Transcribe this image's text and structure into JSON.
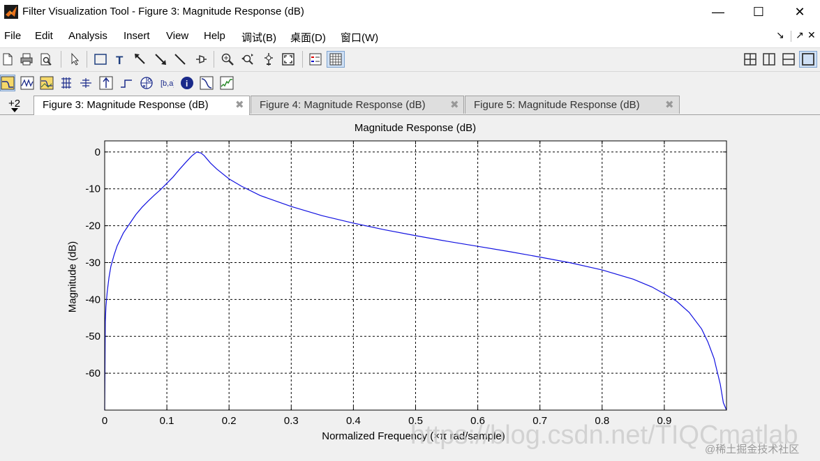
{
  "window": {
    "title": "Filter Visualization Tool - Figure 3: Magnitude Response (dB)",
    "minimize": "—",
    "maximize": "☐",
    "close": "✕"
  },
  "menu": {
    "items": [
      "File",
      "Edit",
      "Analysis",
      "Insert",
      "View",
      "Help",
      "调试(B)",
      "桌面(D)",
      "窗口(W)"
    ],
    "dock_glyph": "↘",
    "undock_glyph": "↗",
    "close_glyph": "✕"
  },
  "toolbar": {
    "icons": [
      "new-file-icon",
      "print-icon",
      "print-preview-icon",
      "select-arrow-icon",
      "rectangle-icon",
      "text-icon",
      "arrow-icon",
      "double-arrow-icon",
      "line-icon",
      "pin-icon",
      "zoom-in-icon",
      "zoom-out-icon",
      "pan-icon",
      "zoom-fit-icon",
      "legend-icon",
      "grid-icon",
      "tile-grid-icon",
      "tile-columns-icon",
      "tile-rows-icon",
      "single-view-icon"
    ],
    "analysis_icons": [
      "magnitude-icon",
      "phase-icon",
      "magnitude-phase-icon",
      "group-delay-icon",
      "phase-delay-icon",
      "impulse-icon",
      "step-icon",
      "pole-zero-icon",
      "coefficients-icon",
      "info-icon",
      "round-off-icon",
      "noise-icon"
    ]
  },
  "tabs": {
    "overflow_label": "+2",
    "items": [
      {
        "label": "Figure 3: Magnitude Response (dB)",
        "active": true
      },
      {
        "label": "Figure 4: Magnitude Response (dB)",
        "active": false
      },
      {
        "label": "Figure 5: Magnitude Response (dB)",
        "active": false
      }
    ],
    "close_glyph": "✖"
  },
  "watermark": {
    "url": "https://blog.csdn.net/TIQCmatlab",
    "credit": "@稀土掘金技术社区"
  },
  "chart_data": {
    "type": "line",
    "title": "Magnitude Response (dB)",
    "xlabel": "Normalized Frequency (×π rad/sample)",
    "ylabel": "Magnitude (dB)",
    "xlim": [
      0,
      1
    ],
    "ylim": [
      -70,
      3
    ],
    "xticks": [
      0,
      0.1,
      0.2,
      0.3,
      0.4,
      0.5,
      0.6,
      0.7,
      0.8,
      0.9
    ],
    "xtick_labels": [
      "0",
      "0.1",
      "0.2",
      "0.3",
      "0.4",
      "0.5",
      "0.6",
      "0.7",
      "0.8",
      "0.9"
    ],
    "yticks": [
      0,
      -10,
      -20,
      -30,
      -40,
      -50,
      -60
    ],
    "ytick_labels": [
      "0",
      "-10",
      "-20",
      "-30",
      "-40",
      "-50",
      "-60"
    ],
    "grid": true,
    "line_color": "#1010e0",
    "series": [
      {
        "x": [
          0.0,
          0.001,
          0.002,
          0.004,
          0.007,
          0.01,
          0.015,
          0.02,
          0.03,
          0.04,
          0.05,
          0.06,
          0.07,
          0.08,
          0.09,
          0.1,
          0.11,
          0.12,
          0.13,
          0.14,
          0.148,
          0.155,
          0.16,
          0.17,
          0.18,
          0.2,
          0.22,
          0.25,
          0.3,
          0.35,
          0.4,
          0.45,
          0.5,
          0.55,
          0.6,
          0.65,
          0.7,
          0.75,
          0.8,
          0.85,
          0.88,
          0.9,
          0.92,
          0.94,
          0.96,
          0.97,
          0.98,
          0.985,
          0.99,
          0.995,
          1.0
        ],
        "y": [
          -70,
          -46,
          -42,
          -38,
          -34,
          -31,
          -28,
          -25.5,
          -22,
          -19.5,
          -17,
          -15,
          -13.3,
          -11.7,
          -10.2,
          -8.5,
          -6.8,
          -4.8,
          -2.9,
          -1.1,
          0,
          -0.3,
          -1,
          -3,
          -4.6,
          -7.3,
          -9.3,
          -11.8,
          -14.8,
          -17.3,
          -19.3,
          -21.1,
          -22.7,
          -24.2,
          -25.6,
          -27.0,
          -28.5,
          -30.1,
          -32,
          -34.5,
          -36.6,
          -38.5,
          -40.5,
          -43.5,
          -48,
          -51.5,
          -56,
          -59.5,
          -63,
          -68,
          -70
        ]
      }
    ]
  }
}
